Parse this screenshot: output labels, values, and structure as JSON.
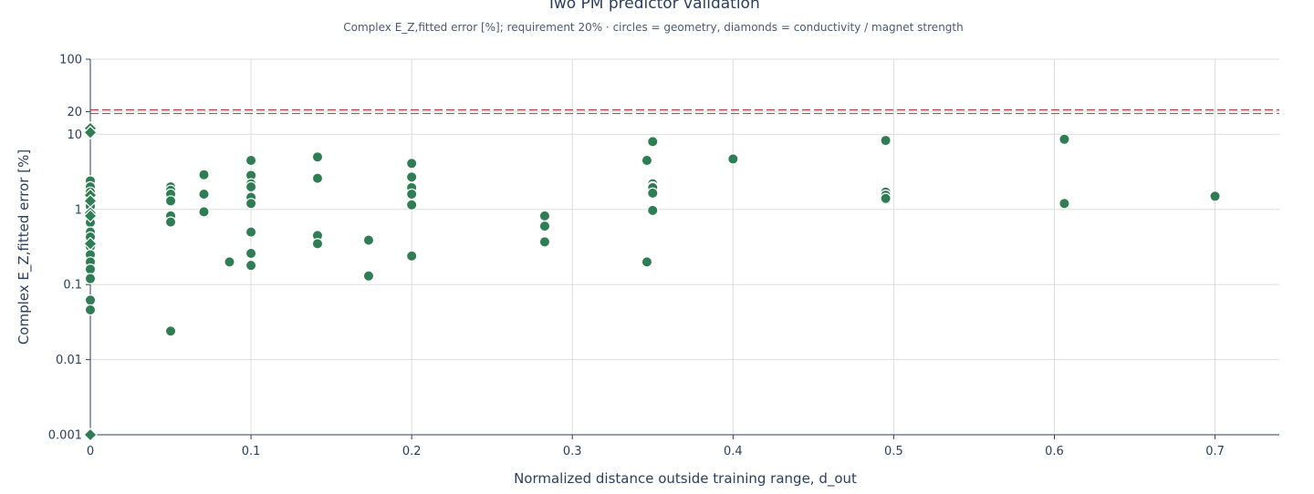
{
  "chart_data": {
    "type": "scatter",
    "title": "Two PM predictor validation",
    "subtitle": "Complex E_Z,fitted error [%]; requirement 20% · circles = geometry, diamonds = conductivity / magnet strength",
    "xlabel": "Normalized distance outside training range, d_out",
    "ylabel": "Complex E_Z,fitted error [%]",
    "xlim": [
      0,
      0.74
    ],
    "ylim": [
      0.001,
      100
    ],
    "y_scale": "log",
    "x_ticks": [
      "0",
      "0.1",
      "0.2",
      "0.3",
      "0.4",
      "0.5",
      "0.6",
      "0.7"
    ],
    "y_ticks": [
      "0.001",
      "0.01",
      "0.1",
      "1",
      "10",
      "20",
      "100"
    ],
    "grid": true,
    "requirement_line": 20,
    "colors": {
      "marker": "#2e7d53",
      "marker_edge": "#ffffff",
      "requirement": "#b33a3a",
      "grid": "#dddddd",
      "axis": "#2a3f5f"
    },
    "series": [
      {
        "marker": "circle",
        "points": [
          [
            0,
            2.4
          ],
          [
            0,
            2.0
          ],
          [
            0,
            1.7
          ],
          [
            0,
            1.4
          ],
          [
            0,
            1.1
          ],
          [
            0,
            0.88
          ],
          [
            0,
            0.67
          ],
          [
            0,
            0.5
          ],
          [
            0,
            0.43
          ],
          [
            0,
            0.32
          ],
          [
            0,
            0.25
          ],
          [
            0,
            0.2
          ],
          [
            0,
            0.16
          ],
          [
            0,
            0.12
          ],
          [
            0,
            0.062
          ],
          [
            0,
            0.046
          ],
          [
            0.05,
            2.0
          ],
          [
            0.05,
            1.8
          ],
          [
            0.05,
            1.6
          ],
          [
            0.05,
            1.3
          ],
          [
            0.05,
            0.82
          ],
          [
            0.05,
            0.68
          ],
          [
            0.05,
            0.024
          ],
          [
            0.0707,
            2.9
          ],
          [
            0.0707,
            1.6
          ],
          [
            0.0707,
            0.93
          ],
          [
            0.0866,
            0.2
          ],
          [
            0.1,
            4.5
          ],
          [
            0.1,
            2.85
          ],
          [
            0.1,
            2.2
          ],
          [
            0.1,
            2.0
          ],
          [
            0.1,
            1.45
          ],
          [
            0.1,
            1.2
          ],
          [
            0.1,
            0.5
          ],
          [
            0.1,
            0.26
          ],
          [
            0.1,
            0.18
          ],
          [
            0.1414,
            5.0
          ],
          [
            0.1414,
            2.6
          ],
          [
            0.1414,
            0.45
          ],
          [
            0.1414,
            0.35
          ],
          [
            0.1732,
            0.39
          ],
          [
            0.1732,
            0.13
          ],
          [
            0.2,
            4.1
          ],
          [
            0.2,
            2.8
          ],
          [
            0.2,
            2.7
          ],
          [
            0.2,
            1.95
          ],
          [
            0.2,
            1.6
          ],
          [
            0.2,
            1.15
          ],
          [
            0.2,
            0.24
          ],
          [
            0.2828,
            0.82
          ],
          [
            0.2828,
            0.6
          ],
          [
            0.2828,
            0.37
          ],
          [
            0.3464,
            4.5
          ],
          [
            0.3464,
            0.2
          ],
          [
            0.35,
            8.0
          ],
          [
            0.35,
            2.2
          ],
          [
            0.35,
            2.0
          ],
          [
            0.35,
            1.95
          ],
          [
            0.35,
            1.65
          ],
          [
            0.35,
            0.97
          ],
          [
            0.4,
            4.7
          ],
          [
            0.495,
            8.3
          ],
          [
            0.495,
            1.7
          ],
          [
            0.495,
            1.55
          ],
          [
            0.495,
            1.4
          ],
          [
            0.6062,
            8.6
          ],
          [
            0.6062,
            1.2
          ],
          [
            0.7,
            1.5
          ]
        ]
      },
      {
        "marker": "diamond",
        "points": [
          [
            0,
            12.0
          ],
          [
            0,
            10.6
          ],
          [
            0,
            1.55
          ],
          [
            0,
            1.3
          ],
          [
            0,
            0.9
          ],
          [
            0,
            0.82
          ],
          [
            0,
            0.35
          ],
          [
            0,
            0.001
          ]
        ]
      }
    ]
  }
}
